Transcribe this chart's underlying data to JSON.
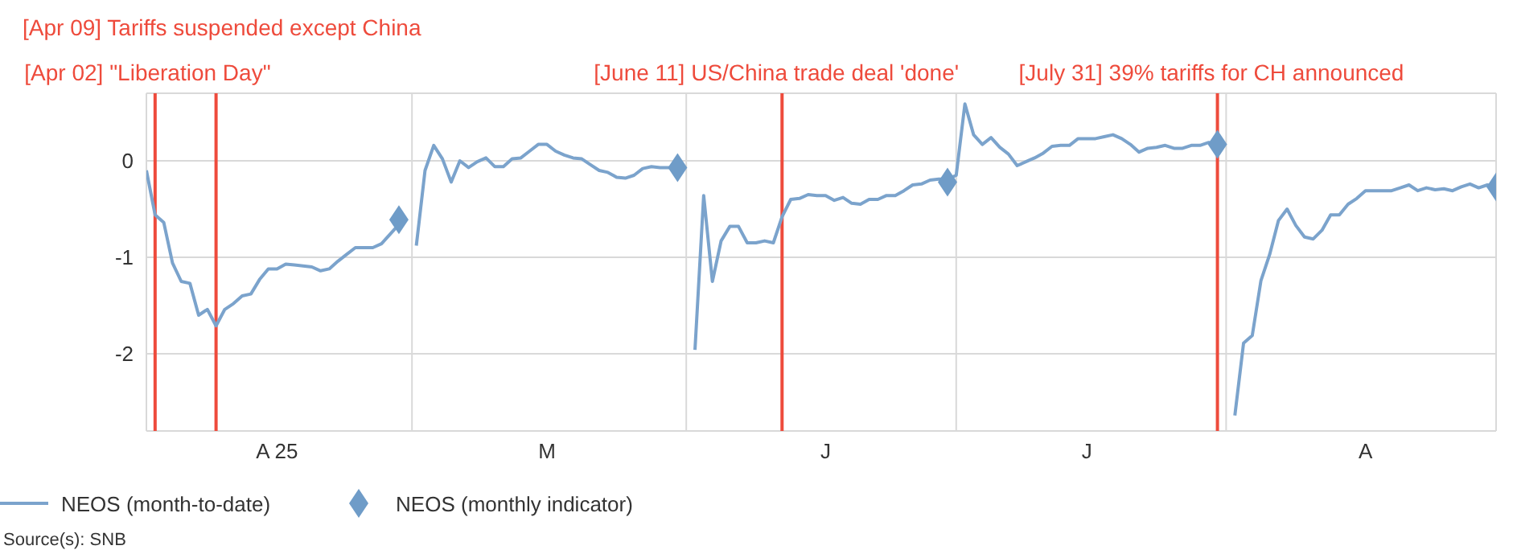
{
  "chart_data": {
    "type": "line",
    "categories": [
      null,
      null,
      null,
      null,
      null,
      null,
      null,
      null,
      null,
      null,
      null,
      null,
      null,
      null,
      null,
      "A 25",
      null,
      null,
      null,
      null,
      null,
      null,
      null,
      null,
      null,
      null,
      null,
      null,
      null,
      null,
      null,
      null,
      null,
      null,
      null,
      null,
      null,
      null,
      null,
      null,
      null,
      null,
      null,
      null,
      null,
      null,
      "M",
      null,
      null,
      null,
      null,
      null,
      null,
      null,
      null,
      null,
      null,
      null,
      null,
      null,
      null,
      null,
      null,
      null,
      null,
      null,
      null,
      null,
      null,
      null,
      null,
      null,
      null,
      null,
      null,
      null,
      null,
      null,
      "J",
      null,
      null,
      null,
      null,
      null,
      null,
      null,
      null,
      null,
      null,
      null,
      null,
      null,
      null,
      null,
      null,
      null,
      null,
      null,
      null,
      null,
      null,
      null,
      null,
      null,
      null,
      null,
      null,
      null,
      "J",
      null,
      null,
      null,
      null,
      null,
      null,
      null,
      null,
      null,
      null,
      null,
      null,
      null,
      null,
      null,
      null,
      null,
      null,
      null,
      null,
      null,
      null,
      null,
      null,
      null,
      null,
      null,
      null,
      null,
      null,
      null,
      "A",
      null,
      null,
      null,
      null,
      null,
      null,
      null,
      null,
      null,
      null,
      null,
      null,
      null,
      null,
      null
    ],
    "series": [
      {
        "name": "NEOS (month-to-date)",
        "type": "line",
        "color": "#7ba3cc",
        "marker": "none",
        "values": [
          -0.1,
          -0.56,
          -0.64,
          -1.06,
          -1.25,
          -1.27,
          -1.6,
          -1.54,
          -1.71,
          -1.54,
          -1.48,
          -1.4,
          -1.38,
          -1.23,
          -1.12,
          -1.12,
          -1.07,
          -1.08,
          -1.09,
          -1.1,
          -1.14,
          -1.12,
          -1.04,
          -0.97,
          -0.9,
          -0.9,
          -0.9,
          -0.86,
          -0.76,
          -0.66,
          null,
          -0.88,
          -0.1,
          0.16,
          0.02,
          -0.22,
          0.0,
          -0.07,
          -0.01,
          0.03,
          -0.06,
          -0.06,
          0.02,
          0.03,
          0.1,
          0.17,
          0.17,
          0.1,
          0.06,
          0.03,
          0.02,
          -0.04,
          -0.1,
          -0.12,
          -0.17,
          -0.18,
          -0.15,
          -0.08,
          -0.06,
          -0.07,
          -0.07,
          -0.07,
          null,
          -1.96,
          -0.36,
          -1.25,
          -0.83,
          -0.68,
          -0.68,
          -0.85,
          -0.85,
          -0.83,
          -0.85,
          -0.58,
          -0.4,
          -0.39,
          -0.35,
          -0.36,
          -0.36,
          -0.41,
          -0.38,
          -0.44,
          -0.45,
          -0.4,
          -0.4,
          -0.36,
          -0.36,
          -0.31,
          -0.25,
          -0.24,
          -0.2,
          -0.19,
          -0.19,
          -0.15,
          0.59,
          0.27,
          0.17,
          0.24,
          0.14,
          0.07,
          -0.05,
          -0.01,
          0.03,
          0.08,
          0.15,
          0.16,
          0.16,
          0.23,
          0.23,
          0.23,
          0.25,
          0.27,
          0.23,
          0.17,
          0.09,
          0.13,
          0.14,
          0.16,
          0.13,
          0.13,
          0.16,
          0.16,
          0.19,
          0.17,
          null,
          -2.64,
          -1.89,
          -1.81,
          -1.24,
          -0.97,
          -0.62,
          -0.5,
          -0.67,
          -0.79,
          -0.81,
          -0.72,
          -0.56,
          -0.56,
          -0.45,
          -0.39,
          -0.31,
          -0.31,
          -0.31,
          -0.31,
          -0.28,
          -0.25,
          -0.31,
          -0.28,
          -0.3,
          -0.29,
          -0.31,
          -0.27,
          -0.24,
          -0.28,
          -0.25,
          -0.27
        ]
      },
      {
        "name": "NEOS (monthly indicator)",
        "type": "scatter",
        "color": "#6f9cc8",
        "marker": "diamond",
        "values": [
          null,
          null,
          null,
          null,
          null,
          null,
          null,
          null,
          null,
          null,
          null,
          null,
          null,
          null,
          null,
          null,
          null,
          null,
          null,
          null,
          null,
          null,
          null,
          null,
          null,
          null,
          null,
          null,
          null,
          -0.61,
          null,
          null,
          null,
          null,
          null,
          null,
          null,
          null,
          null,
          null,
          null,
          null,
          null,
          null,
          null,
          null,
          null,
          null,
          null,
          null,
          null,
          null,
          null,
          null,
          null,
          null,
          null,
          null,
          null,
          null,
          null,
          -0.07,
          null,
          null,
          null,
          null,
          null,
          null,
          null,
          null,
          null,
          null,
          null,
          null,
          null,
          null,
          null,
          null,
          null,
          null,
          null,
          null,
          null,
          null,
          null,
          null,
          null,
          null,
          null,
          null,
          null,
          null,
          -0.22,
          null,
          null,
          null,
          null,
          null,
          null,
          null,
          null,
          null,
          null,
          null,
          null,
          null,
          null,
          null,
          null,
          null,
          null,
          null,
          null,
          null,
          null,
          null,
          null,
          null,
          null,
          null,
          null,
          null,
          null,
          0.17,
          null,
          null,
          null,
          null,
          null,
          null,
          null,
          null,
          null,
          null,
          null,
          null,
          null,
          null,
          null,
          null,
          null,
          null,
          null,
          null,
          null,
          null,
          null,
          null,
          null,
          null,
          null,
          null,
          null,
          null,
          null,
          -0.27
        ]
      }
    ],
    "ylim": [
      -2.8,
      0.7
    ],
    "yticks": [
      -2,
      -1,
      0
    ],
    "grid": true,
    "legend": "bottom left",
    "annotations": [
      "[Apr 02] \"Liberation Day\"",
      "[Apr 09] Tariffs suspended except China",
      "[June 11] US/China trade deal 'done'",
      "[July 31] 39% tariffs for CH announced",
      "Source(s): SNB"
    ]
  }
}
